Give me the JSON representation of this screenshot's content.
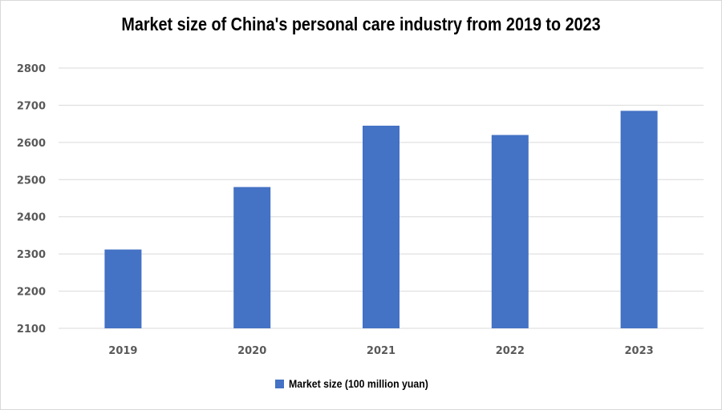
{
  "chart_data": {
    "type": "bar",
    "title": "Market size of China's personal care industry from 2019 to 2023",
    "categories": [
      "2019",
      "2020",
      "2021",
      "2022",
      "2023"
    ],
    "series": [
      {
        "name": "Market size (100 million yuan)",
        "values": [
          2312,
          2480,
          2645,
          2620,
          2685
        ],
        "color": "#4472C4"
      }
    ],
    "y_ticks": [
      "2100",
      "2200",
      "2300",
      "2400",
      "2500",
      "2600",
      "2700",
      "2800"
    ],
    "ylim": [
      2100,
      2800
    ],
    "xlabel": "",
    "ylabel": "",
    "grid": true,
    "legend_position": "bottom",
    "colors": {
      "bar": "#4472C4",
      "grid": "#d9d9d9",
      "tick_text": "#595959"
    }
  }
}
